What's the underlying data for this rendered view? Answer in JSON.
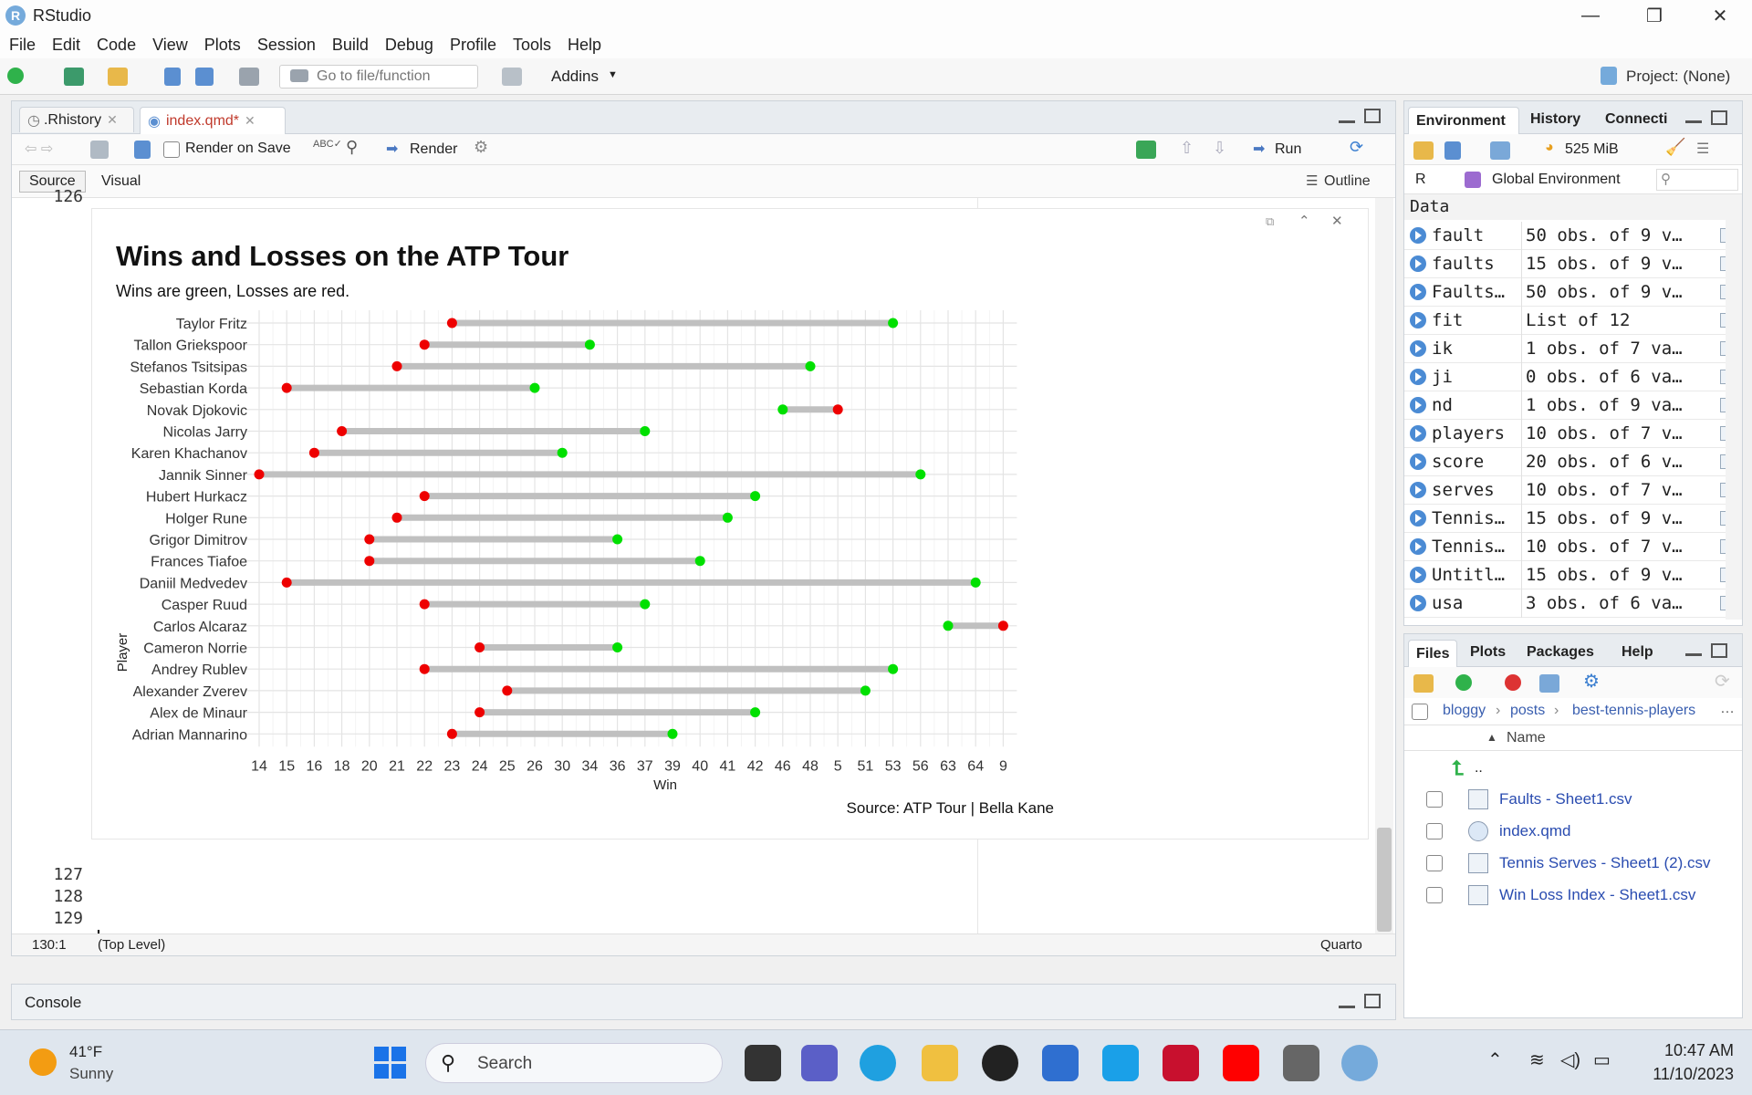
{
  "window": {
    "title": "RStudio"
  },
  "menu": [
    "File",
    "Edit",
    "Code",
    "View",
    "Plots",
    "Session",
    "Build",
    "Debug",
    "Profile",
    "Tools",
    "Help"
  ],
  "toolbar": {
    "goto_placeholder": "Go to file/function",
    "addins": "Addins",
    "project": "Project: (None)"
  },
  "editor": {
    "tabs": [
      {
        "label": ".Rhistory"
      },
      {
        "label": "index.qmd*"
      }
    ],
    "render_on_save": "Render on Save",
    "render": "Render",
    "run": "Run",
    "source_tab": "Source",
    "visual_tab": "Visual",
    "outline": "Outline",
    "top_line": "126",
    "line_numbers": [
      "127",
      "128",
      "129",
      "130"
    ],
    "status_position": "130:1",
    "status_scope": "(Top Level)",
    "status_mode": "Quarto"
  },
  "chart_data": {
    "type": "dumbbell",
    "title": "Wins and Losses on the ATP Tour",
    "subtitle": "Wins are green, Losses are red.",
    "xlabel": "Win",
    "ylabel": "Player",
    "caption": "Source: ATP Tour | Bella Kane",
    "x_ticks": [
      "14",
      "15",
      "16",
      "18",
      "20",
      "21",
      "22",
      "23",
      "24",
      "25",
      "26",
      "30",
      "34",
      "36",
      "37",
      "39",
      "40",
      "41",
      "42",
      "46",
      "48",
      "5",
      "51",
      "53",
      "56",
      "63",
      "64",
      "9"
    ],
    "grid": true,
    "colors": {
      "win": "#00e000",
      "loss": "#ee0000",
      "segment": "#c0c0c0"
    },
    "players": [
      {
        "name": "Taylor Fritz",
        "loss": "23",
        "win": "53"
      },
      {
        "name": "Tallon Griekspoor",
        "loss": "22",
        "win": "34"
      },
      {
        "name": "Stefanos Tsitsipas",
        "loss": "21",
        "win": "48"
      },
      {
        "name": "Sebastian Korda",
        "loss": "15",
        "win": "26"
      },
      {
        "name": "Novak Djokovic",
        "loss": "5",
        "win": "46"
      },
      {
        "name": "Nicolas Jarry",
        "loss": "18",
        "win": "37"
      },
      {
        "name": "Karen Khachanov",
        "loss": "16",
        "win": "30"
      },
      {
        "name": "Jannik Sinner",
        "loss": "14",
        "win": "56"
      },
      {
        "name": "Hubert Hurkacz",
        "loss": "22",
        "win": "42"
      },
      {
        "name": "Holger Rune",
        "loss": "21",
        "win": "41"
      },
      {
        "name": "Grigor Dimitrov",
        "loss": "20",
        "win": "36"
      },
      {
        "name": "Frances Tiafoe",
        "loss": "20",
        "win": "40"
      },
      {
        "name": "Daniil Medvedev",
        "loss": "15",
        "win": "64"
      },
      {
        "name": "Casper Ruud",
        "loss": "22",
        "win": "37"
      },
      {
        "name": "Carlos Alcaraz",
        "loss": "9",
        "win": "63"
      },
      {
        "name": "Cameron Norrie",
        "loss": "24",
        "win": "36"
      },
      {
        "name": "Andrey Rublev",
        "loss": "22",
        "win": "53"
      },
      {
        "name": "Alexander Zverev",
        "loss": "25",
        "win": "51"
      },
      {
        "name": "Alex de Minaur",
        "loss": "24",
        "win": "42"
      },
      {
        "name": "Adrian Mannarino",
        "loss": "23",
        "win": "39"
      }
    ]
  },
  "environment": {
    "tabs": [
      "Environment",
      "History",
      "Connecti"
    ],
    "memory": "525 MiB",
    "lang": "R",
    "scope": "Global Environment",
    "section": "Data",
    "rows": [
      {
        "name": "fault",
        "value": "50 obs. of 9 v…"
      },
      {
        "name": "faults",
        "value": "15 obs. of 9 v…"
      },
      {
        "name": "Faults…",
        "value": "50 obs. of 9 v…"
      },
      {
        "name": "fit",
        "value": "List of  12"
      },
      {
        "name": "ik",
        "value": "1 obs. of 7 va…"
      },
      {
        "name": "ji",
        "value": "0 obs. of 6 va…"
      },
      {
        "name": "nd",
        "value": "1 obs. of 9 va…"
      },
      {
        "name": "players",
        "value": "10 obs. of 7 v…"
      },
      {
        "name": "score",
        "value": "20 obs. of 6 v…"
      },
      {
        "name": "serves",
        "value": "10 obs. of 7 v…"
      },
      {
        "name": "Tennis…",
        "value": "15 obs. of 9 v…"
      },
      {
        "name": "Tennis…",
        "value": "10 obs. of 7 v…"
      },
      {
        "name": "Untitl…",
        "value": "15 obs. of 9 v…"
      },
      {
        "name": "usa",
        "value": "3 obs. of 6 va…"
      }
    ]
  },
  "files": {
    "tabs": [
      "Files",
      "Plots",
      "Packages",
      "Help"
    ],
    "breadcrumb": [
      "bloggy",
      "posts",
      "best-tennis-players"
    ],
    "column": "Name",
    "up": "..",
    "items": [
      "Faults - Sheet1.csv",
      "index.qmd",
      "Tennis Serves - Sheet1 (2).csv",
      "Win Loss Index - Sheet1.csv"
    ]
  },
  "console": {
    "label": "Console"
  },
  "taskbar": {
    "weather_temp": "41°F",
    "weather_desc": "Sunny",
    "search": "Search",
    "time": "10:47 AM",
    "date": "11/10/2023"
  }
}
